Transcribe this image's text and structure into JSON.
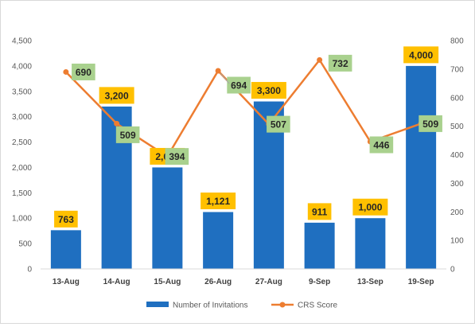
{
  "chart_data": {
    "type": "bar+line",
    "categories": [
      "13-Aug",
      "14-Aug",
      "15-Aug",
      "26-Aug",
      "27-Aug",
      "9-Sep",
      "13-Sep",
      "19-Sep"
    ],
    "series": [
      {
        "name": "Number of Invitations",
        "type": "bar",
        "axis": "left",
        "color": "#1f6fc0",
        "values": [
          763,
          3200,
          2000,
          1121,
          3300,
          911,
          1000,
          4000
        ],
        "labels": [
          "763",
          "3,200",
          "2,000",
          "1,121",
          "3,300",
          "911",
          "1,000",
          "4,000"
        ],
        "label_color": "#ffc000"
      },
      {
        "name": "CRS Score",
        "type": "line",
        "axis": "right",
        "color": "#ed7d31",
        "values": [
          690,
          509,
          394,
          694,
          507,
          732,
          446,
          509
        ],
        "labels": [
          "690",
          "509",
          "394",
          "694",
          "507",
          "732",
          "446",
          "509"
        ],
        "label_color": "#a9d18e"
      }
    ],
    "y_left": {
      "range": [
        0,
        4500
      ],
      "ticks": [
        0,
        500,
        1000,
        1500,
        2000,
        2500,
        3000,
        3500,
        4000,
        4500
      ],
      "tick_labels": [
        "0",
        "500",
        "1,000",
        "1,500",
        "2,000",
        "2,500",
        "3,000",
        "3,500",
        "4,000",
        "4,500"
      ]
    },
    "y_right": {
      "range": [
        0,
        800
      ],
      "ticks": [
        0,
        100,
        200,
        300,
        400,
        500,
        600,
        700,
        800
      ],
      "tick_labels": [
        "0",
        "100",
        "200",
        "300",
        "400",
        "500",
        "600",
        "700",
        "800"
      ]
    },
    "grid": false,
    "legend_position": "bottom"
  }
}
